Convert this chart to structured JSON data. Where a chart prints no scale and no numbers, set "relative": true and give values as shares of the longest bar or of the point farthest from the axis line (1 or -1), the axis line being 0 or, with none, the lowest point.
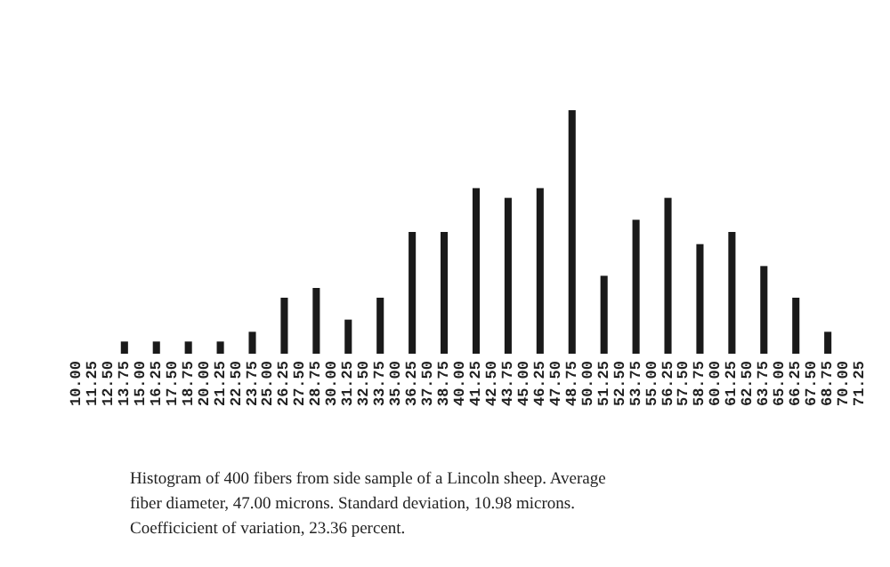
{
  "chart_data": {
    "type": "bar",
    "relative": true,
    "color": "#1a1a1a",
    "categories": [
      "10.00",
      "11.25",
      "12.50",
      "13.75",
      "15.00",
      "16.25",
      "17.50",
      "18.75",
      "20.00",
      "21.25",
      "22.50",
      "23.75",
      "25.00",
      "26.25",
      "27.50",
      "28.75",
      "30.00",
      "31.25",
      "32.50",
      "33.75",
      "35.00",
      "36.25",
      "37.50",
      "38.75",
      "40.00",
      "41.25",
      "42.50",
      "43.75",
      "45.00",
      "46.25",
      "47.50",
      "48.75",
      "50.00",
      "51.25",
      "52.50",
      "53.75",
      "55.00",
      "56.25",
      "57.50",
      "58.75",
      "60.00",
      "61.25",
      "62.50",
      "63.75",
      "65.00",
      "66.25",
      "67.50",
      "68.75",
      "70.00",
      "71.25"
    ],
    "values": [
      0,
      0,
      0,
      0.05,
      0,
      0.05,
      0,
      0.05,
      0,
      0.05,
      0,
      0.09,
      0,
      0.23,
      0,
      0.27,
      0,
      0.14,
      0,
      0.23,
      0,
      0.5,
      0,
      0.5,
      0,
      0.68,
      0,
      0.64,
      0,
      0.68,
      0,
      1,
      0,
      0.32,
      0,
      0.55,
      0,
      0.64,
      0,
      0.45,
      0,
      0.5,
      0,
      0.36,
      0,
      0.23,
      0,
      0.09,
      0,
      0
    ],
    "annotations": [
      "Histogram of 400 fibers from side sample of a Lincoln sheep. Average fiber diameter, 47.00 microns. Standard deviation, 10.98 microns. Coefficicient of variation, 23.36 percent."
    ]
  }
}
